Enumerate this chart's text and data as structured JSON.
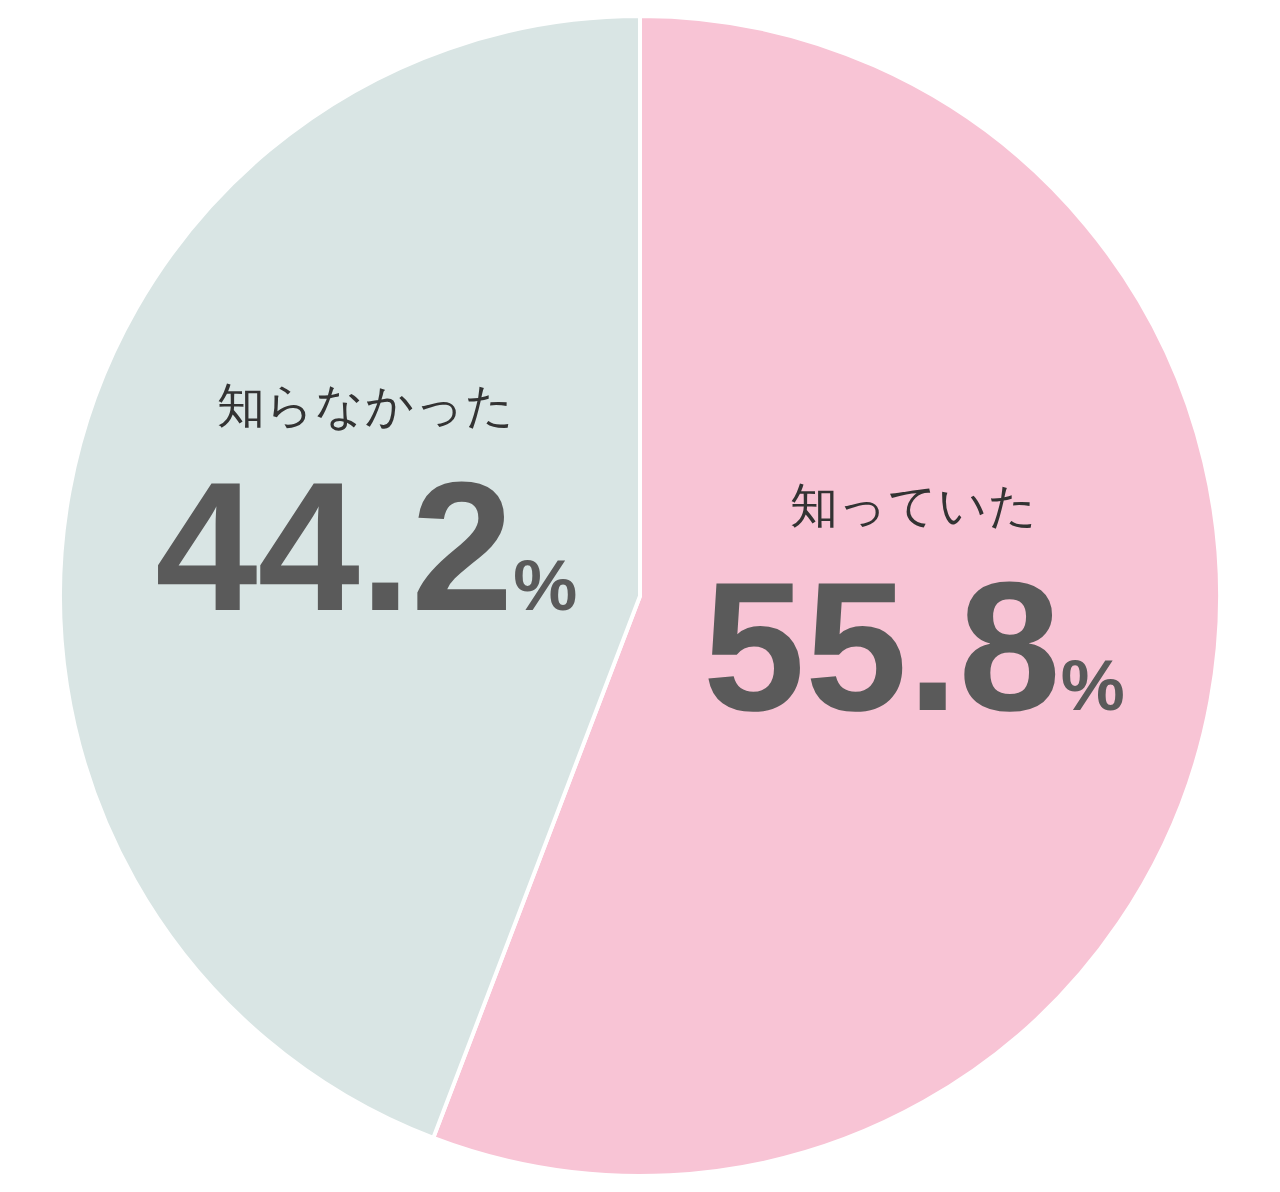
{
  "chart_data": {
    "type": "pie",
    "categories": [
      "知っていた",
      "知らなかった"
    ],
    "values": [
      55.8,
      44.2
    ],
    "colors": [
      "#f8c4d5",
      "#d9e5e4"
    ],
    "value_labels": [
      "55.8%",
      "44.2%"
    ]
  }
}
